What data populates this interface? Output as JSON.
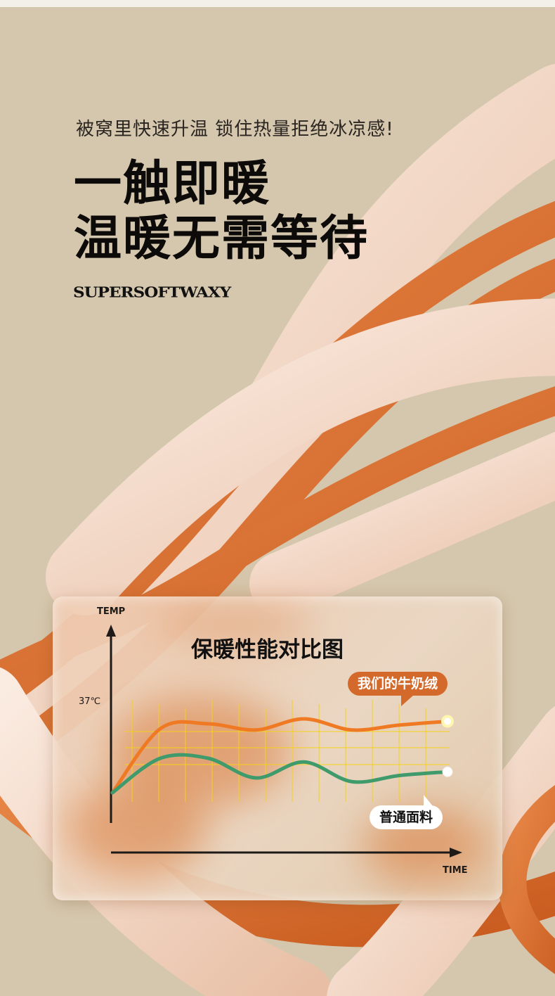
{
  "header": {
    "subtitle": "被窝里快速升温 锁住热量拒绝冰凉感!",
    "headline_line1": "一触即暖",
    "headline_line2": "温暖无需等待",
    "brand_text": "SUPERSOFTWAXY"
  },
  "colors": {
    "background": "#d5c7ad",
    "strand_orange": "#dc7634",
    "strand_cream": "#f1d9c9",
    "our_series": "#f07a24",
    "other_series": "#3f9a6c",
    "grid": "#f5d21a"
  },
  "chart_data": {
    "type": "line",
    "title": "保暖性能对比图",
    "ylabel": "TEMP",
    "xlabel": "TIME",
    "y_tick_labels": [
      "37℃"
    ],
    "grid": true,
    "series": [
      {
        "name": "我们的牛奶绒",
        "values": [
          0,
          52,
          56,
          51,
          60,
          51,
          55,
          58
        ]
      },
      {
        "name": "普通面料",
        "values": [
          0,
          28,
          28,
          12,
          25,
          9,
          14,
          17
        ]
      }
    ],
    "x": [
      0,
      1,
      2,
      3,
      4,
      5,
      6,
      7
    ]
  }
}
